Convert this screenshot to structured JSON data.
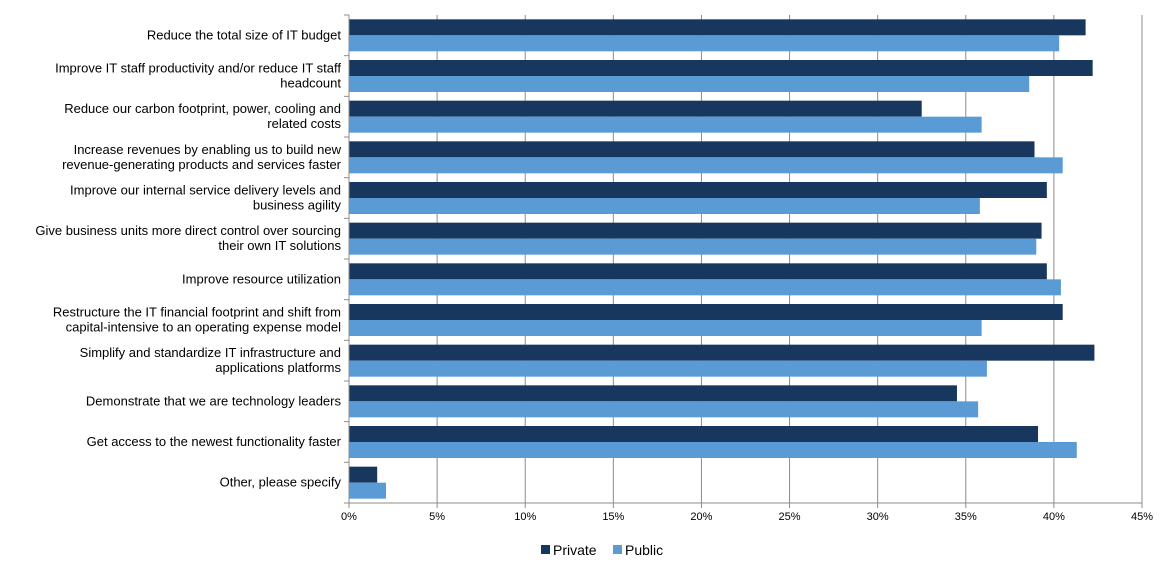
{
  "chart_data": {
    "type": "bar",
    "orientation": "horizontal",
    "categories": [
      [
        "Reduce the total size of IT budget"
      ],
      [
        "Improve IT staff productivity and/or reduce IT staff",
        "headcount"
      ],
      [
        "Reduce our carbon footprint, power, cooling and",
        "related costs"
      ],
      [
        "Increase revenues by enabling us to build new",
        "revenue-generating products and services faster"
      ],
      [
        "Improve our internal service delivery levels and",
        "business agility"
      ],
      [
        "Give business units more direct control over sourcing",
        "their own IT solutions"
      ],
      [
        "Improve resource utilization"
      ],
      [
        "Restructure the IT financial footprint and shift from",
        "capital-intensive to an operating expense model"
      ],
      [
        "Simplify and standardize IT infrastructure and",
        "applications platforms"
      ],
      [
        "Demonstrate that we are technology leaders"
      ],
      [
        "Get access to the newest functionality faster"
      ],
      [
        "Other, please specify"
      ]
    ],
    "series": [
      {
        "name": "Private",
        "color": "#17375e",
        "values": [
          41.8,
          42.2,
          32.5,
          38.9,
          39.6,
          39.3,
          39.6,
          40.5,
          42.3,
          34.5,
          39.1,
          1.6
        ]
      },
      {
        "name": "Public",
        "color": "#5b9bd5",
        "values": [
          40.3,
          38.6,
          35.9,
          40.5,
          35.8,
          39.0,
          40.4,
          35.9,
          36.2,
          35.7,
          41.3,
          2.1
        ]
      }
    ],
    "xlim": [
      0,
      45
    ],
    "x_ticks": [
      "0%",
      "5%",
      "10%",
      "15%",
      "20%",
      "25%",
      "30%",
      "35%",
      "40%",
      "45%"
    ],
    "x_tick_values": [
      0,
      5,
      10,
      15,
      20,
      25,
      30,
      35,
      40,
      45
    ],
    "grid": "vertical",
    "legend": "bottom-center",
    "title": "",
    "xlabel": "",
    "ylabel": ""
  }
}
